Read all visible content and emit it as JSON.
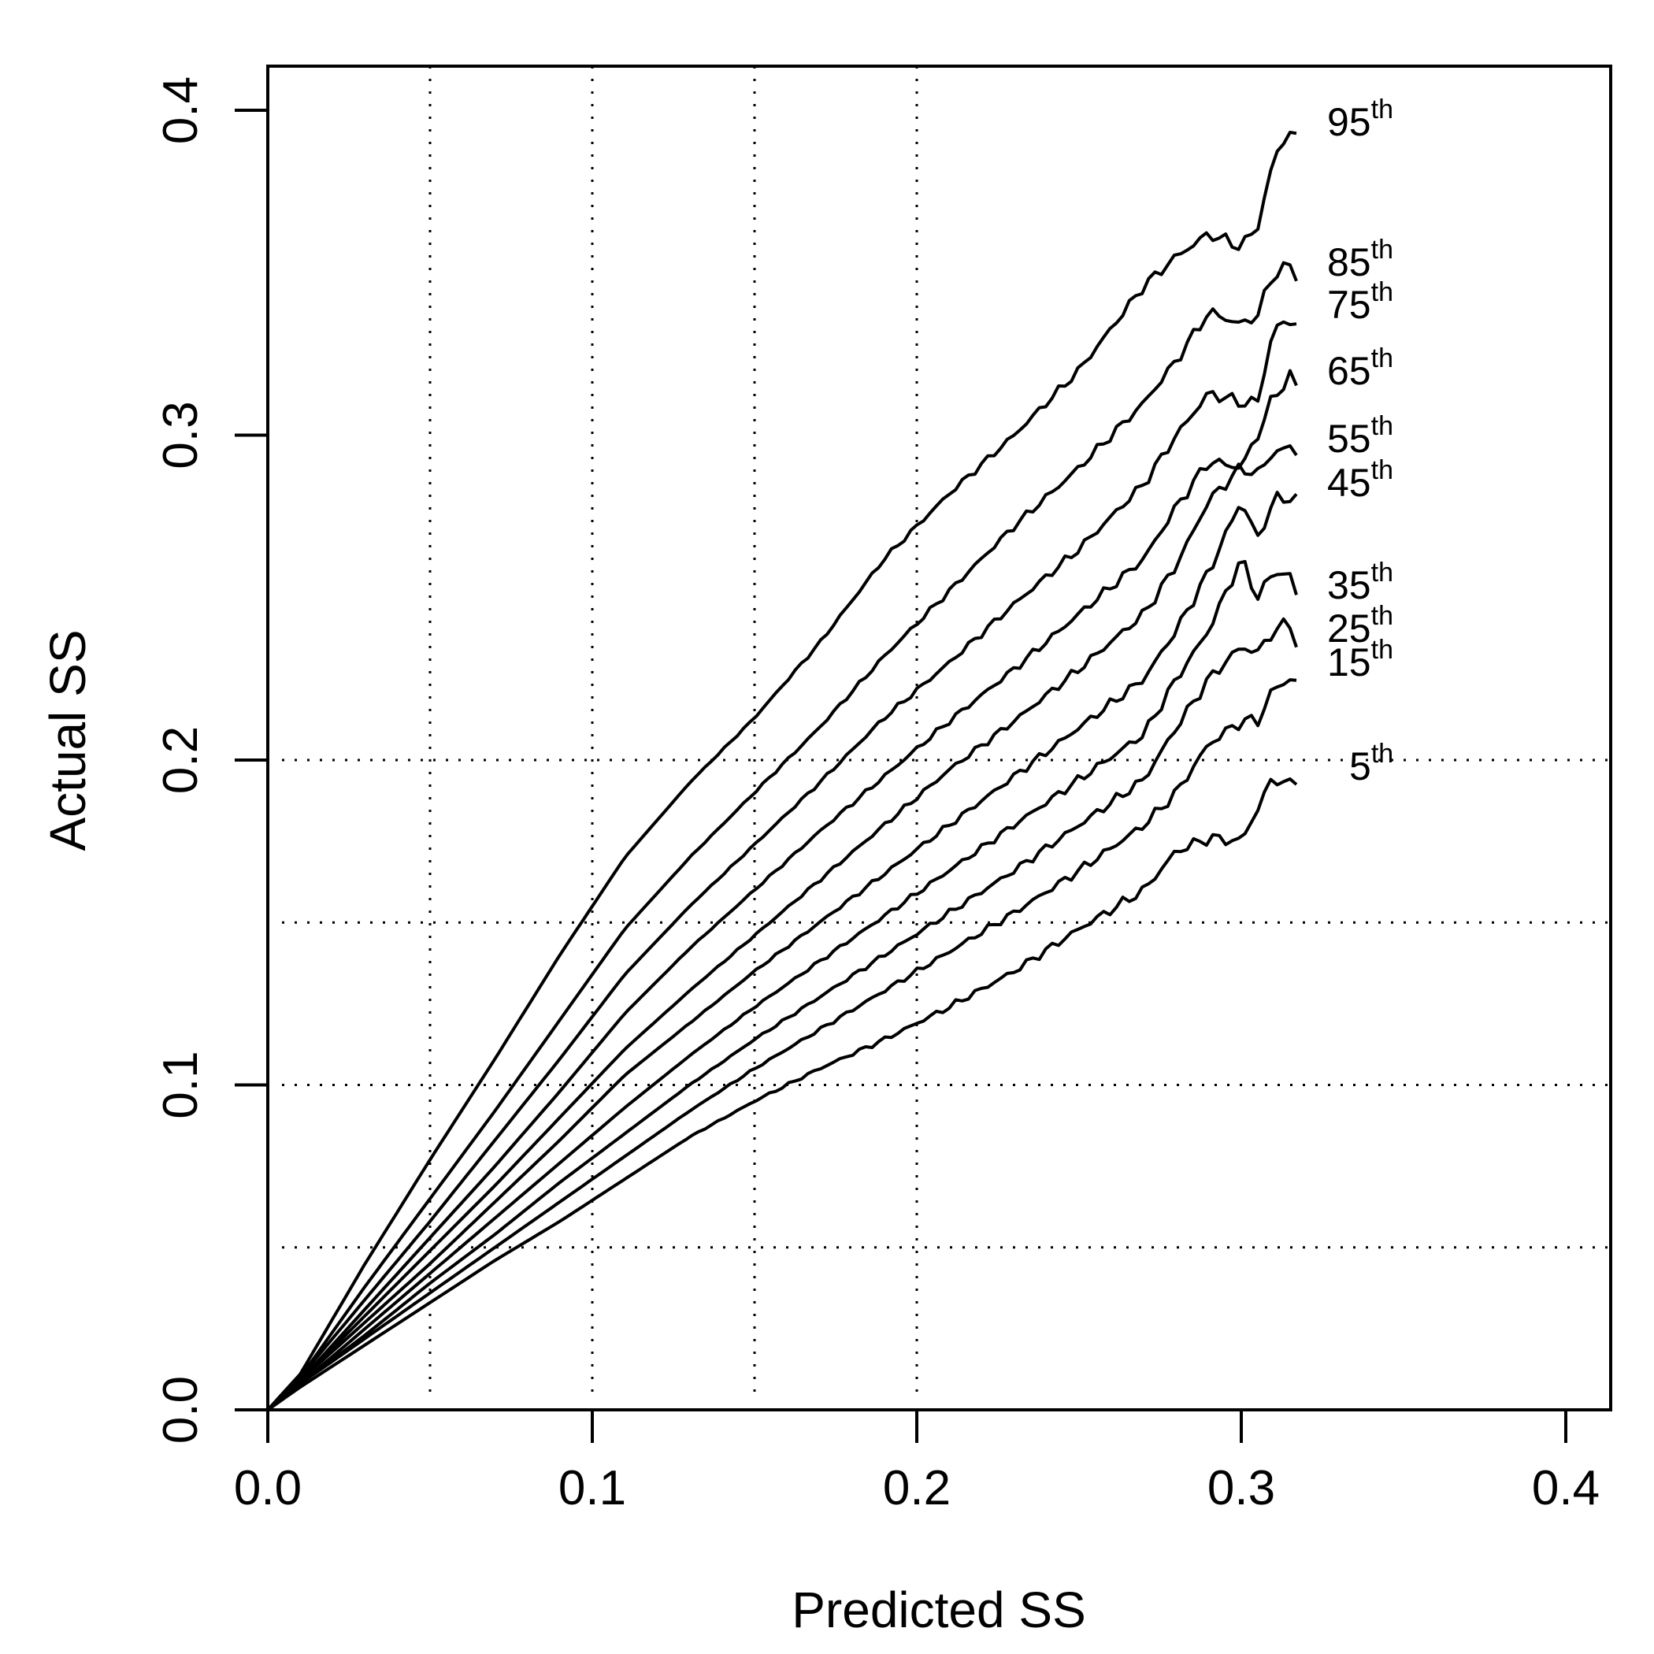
{
  "chart_data": {
    "type": "line",
    "title": "",
    "xlabel": "Predicted SS",
    "ylabel": "Actual SS",
    "xlim": [
      0,
      0.4
    ],
    "ylim": [
      0,
      0.4
    ],
    "x_ticks": [
      "0.0",
      "0.1",
      "0.2",
      "0.3",
      "0.4"
    ],
    "y_ticks": [
      "0.0",
      "0.1",
      "0.2",
      "0.3",
      "0.4"
    ],
    "grid": {
      "style": "dotted",
      "vertical_at": [
        0.05,
        0.1,
        0.15,
        0.2
      ],
      "horizontal_at": [
        0.05,
        0.1,
        0.15,
        0.2
      ]
    },
    "legend": "inline labels at right end of each line",
    "series": [
      {
        "label": "95",
        "sup": "th",
        "x": [
          0,
          0.01,
          0.03,
          0.05,
          0.07,
          0.09,
          0.11,
          0.13,
          0.15,
          0.17,
          0.19,
          0.21,
          0.23,
          0.25,
          0.27,
          0.28,
          0.29,
          0.3,
          0.305,
          0.31,
          0.315,
          0.317
        ],
        "y": [
          0,
          0.011,
          0.045,
          0.077,
          0.108,
          0.14,
          0.17,
          0.193,
          0.213,
          0.236,
          0.262,
          0.282,
          0.3,
          0.32,
          0.346,
          0.355,
          0.362,
          0.358,
          0.364,
          0.385,
          0.394,
          0.391
        ]
      },
      {
        "label": "85",
        "sup": "th",
        "x": [
          0,
          0.01,
          0.03,
          0.05,
          0.07,
          0.09,
          0.11,
          0.13,
          0.15,
          0.17,
          0.19,
          0.21,
          0.23,
          0.25,
          0.27,
          0.28,
          0.29,
          0.3,
          0.305,
          0.31,
          0.315,
          0.317
        ],
        "y": [
          0,
          0.01,
          0.038,
          0.065,
          0.092,
          0.12,
          0.148,
          0.17,
          0.19,
          0.21,
          0.232,
          0.252,
          0.272,
          0.29,
          0.31,
          0.323,
          0.338,
          0.334,
          0.337,
          0.35,
          0.352,
          0.349
        ]
      },
      {
        "label": "75",
        "sup": "th",
        "x": [
          0,
          0.01,
          0.03,
          0.05,
          0.07,
          0.09,
          0.11,
          0.13,
          0.15,
          0.17,
          0.19,
          0.21,
          0.23,
          0.25,
          0.27,
          0.28,
          0.29,
          0.3,
          0.305,
          0.31,
          0.315,
          0.317
        ],
        "y": [
          0,
          0.01,
          0.034,
          0.058,
          0.083,
          0.108,
          0.134,
          0.155,
          0.174,
          0.193,
          0.213,
          0.23,
          0.248,
          0.265,
          0.285,
          0.3,
          0.313,
          0.31,
          0.31,
          0.333,
          0.335,
          0.335
        ]
      },
      {
        "label": "65",
        "sup": "th",
        "x": [
          0,
          0.01,
          0.03,
          0.05,
          0.07,
          0.09,
          0.11,
          0.13,
          0.15,
          0.17,
          0.19,
          0.21,
          0.23,
          0.25,
          0.27,
          0.28,
          0.29,
          0.3,
          0.305,
          0.31,
          0.315,
          0.317
        ],
        "y": [
          0,
          0.009,
          0.031,
          0.053,
          0.075,
          0.098,
          0.122,
          0.142,
          0.16,
          0.178,
          0.195,
          0.212,
          0.228,
          0.245,
          0.262,
          0.278,
          0.292,
          0.29,
          0.3,
          0.312,
          0.318,
          0.315
        ]
      },
      {
        "label": "55",
        "sup": "th",
        "x": [
          0,
          0.01,
          0.03,
          0.05,
          0.07,
          0.09,
          0.11,
          0.13,
          0.15,
          0.17,
          0.19,
          0.21,
          0.23,
          0.25,
          0.27,
          0.28,
          0.29,
          0.3,
          0.305,
          0.31,
          0.315,
          0.317
        ],
        "y": [
          0,
          0.009,
          0.029,
          0.049,
          0.069,
          0.09,
          0.111,
          0.129,
          0.146,
          0.163,
          0.18,
          0.197,
          0.212,
          0.228,
          0.245,
          0.26,
          0.28,
          0.29,
          0.288,
          0.295,
          0.296,
          0.295
        ]
      },
      {
        "label": "45",
        "sup": "th",
        "x": [
          0,
          0.01,
          0.03,
          0.05,
          0.07,
          0.09,
          0.11,
          0.13,
          0.15,
          0.17,
          0.19,
          0.21,
          0.23,
          0.25,
          0.27,
          0.28,
          0.29,
          0.3,
          0.305,
          0.31,
          0.315,
          0.317
        ],
        "y": [
          0,
          0.009,
          0.027,
          0.045,
          0.064,
          0.083,
          0.103,
          0.119,
          0.135,
          0.15,
          0.165,
          0.18,
          0.195,
          0.21,
          0.225,
          0.24,
          0.258,
          0.28,
          0.268,
          0.28,
          0.281,
          0.28
        ]
      },
      {
        "label": "35",
        "sup": "th",
        "x": [
          0,
          0.01,
          0.03,
          0.05,
          0.07,
          0.09,
          0.11,
          0.13,
          0.15,
          0.17,
          0.19,
          0.21,
          0.23,
          0.25,
          0.27,
          0.28,
          0.29,
          0.3,
          0.305,
          0.31,
          0.315,
          0.317
        ],
        "y": [
          0,
          0.008,
          0.025,
          0.042,
          0.059,
          0.076,
          0.093,
          0.109,
          0.124,
          0.138,
          0.152,
          0.166,
          0.18,
          0.194,
          0.208,
          0.225,
          0.24,
          0.262,
          0.25,
          0.258,
          0.257,
          0.25
        ]
      },
      {
        "label": "25",
        "sup": "th",
        "x": [
          0,
          0.01,
          0.03,
          0.05,
          0.07,
          0.09,
          0.11,
          0.13,
          0.15,
          0.17,
          0.19,
          0.21,
          0.23,
          0.25,
          0.27,
          0.28,
          0.29,
          0.3,
          0.305,
          0.31,
          0.315,
          0.317
        ],
        "y": [
          0,
          0.008,
          0.023,
          0.039,
          0.054,
          0.07,
          0.085,
          0.1,
          0.114,
          0.127,
          0.14,
          0.153,
          0.166,
          0.18,
          0.194,
          0.21,
          0.225,
          0.235,
          0.233,
          0.24,
          0.242,
          0.236
        ]
      },
      {
        "label": "15",
        "sup": "th",
        "x": [
          0,
          0.01,
          0.03,
          0.05,
          0.07,
          0.09,
          0.11,
          0.13,
          0.15,
          0.17,
          0.19,
          0.21,
          0.23,
          0.25,
          0.27,
          0.28,
          0.29,
          0.3,
          0.305,
          0.31,
          0.315,
          0.317
        ],
        "y": [
          0,
          0.008,
          0.022,
          0.036,
          0.05,
          0.064,
          0.078,
          0.092,
          0.105,
          0.117,
          0.129,
          0.141,
          0.153,
          0.166,
          0.18,
          0.19,
          0.205,
          0.212,
          0.212,
          0.222,
          0.225,
          0.224
        ]
      },
      {
        "label": "5",
        "sup": "th",
        "x": [
          0,
          0.01,
          0.03,
          0.05,
          0.07,
          0.09,
          0.11,
          0.13,
          0.15,
          0.17,
          0.19,
          0.21,
          0.23,
          0.25,
          0.27,
          0.28,
          0.29,
          0.3,
          0.305,
          0.31,
          0.315,
          0.317
        ],
        "y": [
          0,
          0.007,
          0.02,
          0.033,
          0.046,
          0.058,
          0.071,
          0.084,
          0.095,
          0.105,
          0.114,
          0.124,
          0.135,
          0.148,
          0.16,
          0.172,
          0.176,
          0.175,
          0.185,
          0.195,
          0.192,
          0.194
        ]
      }
    ]
  }
}
